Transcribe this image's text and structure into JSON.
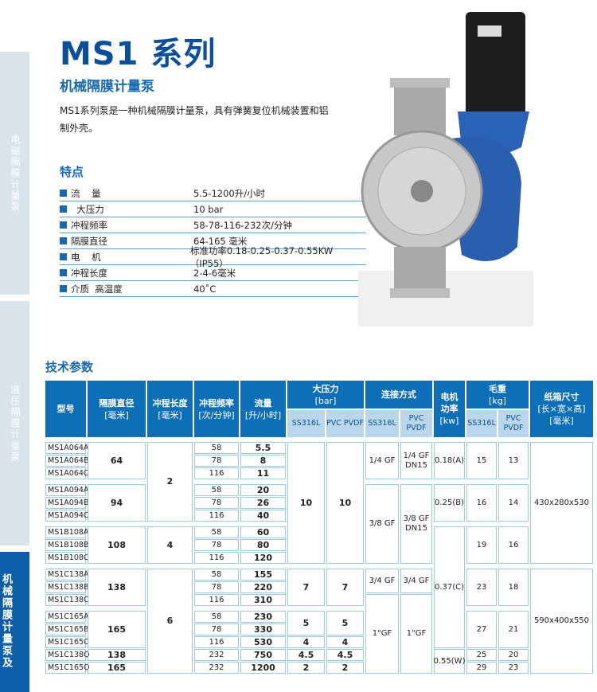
{
  "side_tabs": [
    "电磁隔膜计量泵",
    "液压隔膜计量泵",
    "机械隔膜计量泵及"
  ],
  "title": "MS1 系列",
  "subtitle": "机械隔膜计量泵",
  "description": "MS1系列泵是一种机械隔膜计量泵，具有弹簧复位机械装置和铝制外壳。",
  "features_heading": "特点",
  "features": [
    {
      "k": "流    量",
      "v": "5.5-1200升/小时"
    },
    {
      "k": "  大压力",
      "v": "10 bar"
    },
    {
      "k": "冲程频率",
      "v": "58-78-116-232次/分钟"
    },
    {
      "k": "隔膜直径",
      "v": "64-165 毫米"
    },
    {
      "k": "电    机",
      "v": "标准功率0.18-0.25-0.37-0.55KW（IP55）"
    },
    {
      "k": "冲程长度",
      "v": "2-4-6毫米"
    },
    {
      "k": "介质  高温度",
      "v": "40˚C"
    }
  ],
  "tech_heading": "技术参数",
  "table": {
    "headers": {
      "model": "型号",
      "diam": "隔膜直径",
      "diam_u": "[毫米]",
      "stroke": "冲程长度",
      "stroke_u": "[毫米]",
      "freq": "冲程频率",
      "freq_u": "[次/分钟]",
      "flow": "流量",
      "flow_u": "[升/小时]",
      "press": "大压力",
      "press_u": "[bar]",
      "conn": "连接方式",
      "motor": "电机",
      "motor2": "功率",
      "motor_u": "[kw]",
      "weight": "毛重",
      "weight_u": "[kg]",
      "box": "纸箱尺寸",
      "box_u": "[长×宽×高]",
      "box_u2": "[毫米]",
      "ss": "SS316L",
      "pvc": "PVC PVDF"
    },
    "models": [
      "MS1A064A",
      "MS1A064B",
      "MS1A064C",
      "MS1A094A",
      "MS1A094B",
      "MS1A094C",
      "MS1B108A",
      "MS1B108B",
      "MS1B108C",
      "MS1C138A",
      "MS1C138B",
      "MS1C138C",
      "MS1C165A",
      "MS1C165B",
      "MS1C165C",
      "MS1C138Q",
      "MS1C165Q"
    ],
    "freq": [
      "58",
      "78",
      "116",
      "58",
      "78",
      "116",
      "58",
      "78",
      "116",
      "58",
      "78",
      "116",
      "58",
      "78",
      "116",
      "232",
      "232"
    ],
    "flow": [
      "5.5",
      "8",
      "11",
      "20",
      "26",
      "40",
      "60",
      "80",
      "120",
      "155",
      "220",
      "310",
      "230",
      "330",
      "530",
      "750",
      "1200"
    ],
    "diam": [
      "64",
      "94",
      "108",
      "138",
      "165",
      "138",
      "165"
    ],
    "stroke": [
      "2",
      "4",
      "6"
    ],
    "press_ss": [
      "10",
      "7",
      "5",
      "4",
      "4.5",
      "2"
    ],
    "press_pvc": [
      "10",
      "7",
      "5",
      "4",
      "4.5",
      "2"
    ],
    "conn_ss": [
      "1/4 GF",
      "3/8 GF",
      "3/4 GF",
      "1\"GF"
    ],
    "conn_pvc": [
      "1/4 GF DN15",
      "3/8 GF DN15",
      "3/4 GF",
      "1\"GF"
    ],
    "motor": [
      "0.18(A)",
      "0.25(B)",
      "0.37(C)",
      "0.55(W)"
    ],
    "weight_ss": [
      "15",
      "16",
      "19",
      "23",
      "27",
      "25",
      "29"
    ],
    "weight_pvc": [
      "13",
      "14",
      "16",
      "18",
      "21",
      "20",
      "23"
    ],
    "box": [
      "430x280x530",
      "590x400x550"
    ]
  },
  "colors": {
    "brand_blue": "#0a4f9c",
    "header_blue": "#0d6fb8",
    "subheader": "#b9d6ec",
    "cell_border": "#9ccbe0"
  }
}
